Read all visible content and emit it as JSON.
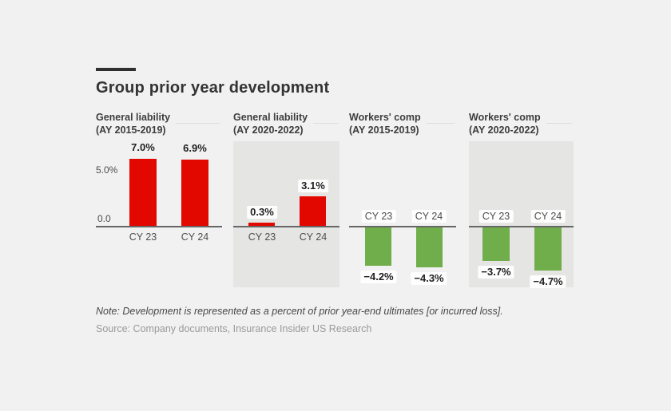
{
  "header": {
    "title": "Group prior year development"
  },
  "footer": {
    "note": "Note: Development is represented as a percent of prior year-end ultimates [or incurred loss].",
    "source": "Source: Company documents, Insurance Insider US Research"
  },
  "colors": {
    "red": "#e20800",
    "green": "#6fae4b",
    "shaded_panel_bg": "#e5e5e4",
    "page_bg": "#f1f1f2",
    "baseline": "#666666"
  },
  "chart_data": [
    {
      "type": "bar",
      "title_line1": "General liability",
      "title_line2": "(AY 2015-2019)",
      "categories": [
        "CY 23",
        "CY 24"
      ],
      "values": [
        7.0,
        6.9
      ],
      "labels": [
        "7.0%",
        "6.9%"
      ],
      "unit": "%",
      "bar_color": "#e20800",
      "shaded_background": false,
      "y_axis": {
        "tick_top": "5.0%",
        "tick_zero": "0.0"
      },
      "ylim": [
        0,
        8
      ],
      "grid": false
    },
    {
      "type": "bar",
      "title_line1": "General liability",
      "title_line2": "(AY 2020-2022)",
      "categories": [
        "CY 23",
        "CY 24"
      ],
      "values": [
        0.3,
        3.1
      ],
      "labels": [
        "0.3%",
        "3.1%"
      ],
      "unit": "%",
      "bar_color": "#e20800",
      "shaded_background": true,
      "ylim": [
        0,
        8
      ],
      "grid": false
    },
    {
      "type": "bar",
      "title_line1": "Workers' comp",
      "title_line2": "(AY 2015-2019)",
      "categories": [
        "CY 23",
        "CY 24"
      ],
      "values": [
        -4.2,
        -4.3
      ],
      "labels": [
        "−4.2%",
        "−4.3%"
      ],
      "unit": "%",
      "bar_color": "#6fae4b",
      "shaded_background": false,
      "ylim": [
        -6,
        0
      ],
      "grid": false
    },
    {
      "type": "bar",
      "title_line1": "Workers' comp",
      "title_line2": "(AY 2020-2022)",
      "categories": [
        "CY 23",
        "CY 24"
      ],
      "values": [
        -3.7,
        -4.7
      ],
      "labels": [
        "−3.7%",
        "−4.7%"
      ],
      "unit": "%",
      "bar_color": "#6fae4b",
      "shaded_background": true,
      "ylim": [
        -6,
        0
      ],
      "grid": false
    }
  ]
}
